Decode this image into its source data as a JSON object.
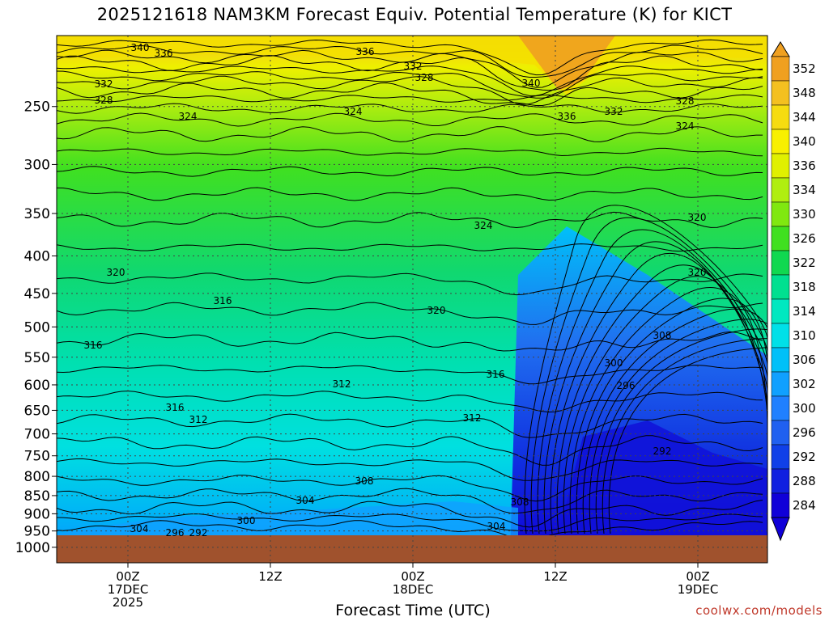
{
  "chart_data": {
    "type": "heatmap",
    "title": "2025121618 NAM3KM Forecast Equiv. Potential Temperature (K) for KICT",
    "xlabel": "Forecast Time (UTC)",
    "ylabel": "",
    "credit": "coolwx.com/models",
    "y_scale": "log-pressure",
    "y_range_hPa": [
      1050,
      200
    ],
    "y_ticks": [
      "250",
      "300",
      "350",
      "400",
      "450",
      "500",
      "550",
      "600",
      "650",
      "700",
      "750",
      "800",
      "850",
      "900",
      "950",
      "1000"
    ],
    "x_ticks": [
      {
        "line1": "00Z",
        "line2": "17DEC",
        "line3": "2025"
      },
      {
        "line1": "12Z",
        "line2": "",
        "line3": ""
      },
      {
        "line1": "00Z",
        "line2": "18DEC",
        "line3": ""
      },
      {
        "line1": "12Z",
        "line2": "",
        "line3": ""
      },
      {
        "line1": "00Z",
        "line2": "19DEC",
        "line3": ""
      }
    ],
    "colorbar_levels": [
      "352",
      "348",
      "344",
      "340",
      "336",
      "334",
      "330",
      "326",
      "322",
      "318",
      "314",
      "310",
      "306",
      "302",
      "300",
      "296",
      "292",
      "288",
      "284"
    ],
    "colorbar_colors": [
      "#f0a020",
      "#f4c020",
      "#f6dc10",
      "#f8f000",
      "#e0f000",
      "#b0ee10",
      "#80e810",
      "#40e020",
      "#10d850",
      "#00e090",
      "#00e8c0",
      "#00e0e8",
      "#00c0f8",
      "#10a0ff",
      "#2080ff",
      "#2060f0",
      "#1040e8",
      "#1020e0",
      "#1000d8"
    ],
    "contour_labels": [
      "340",
      "336",
      "332",
      "328",
      "324",
      "320",
      "316",
      "312",
      "308",
      "304",
      "300",
      "296",
      "292"
    ],
    "ground_color": "#a0522d"
  }
}
